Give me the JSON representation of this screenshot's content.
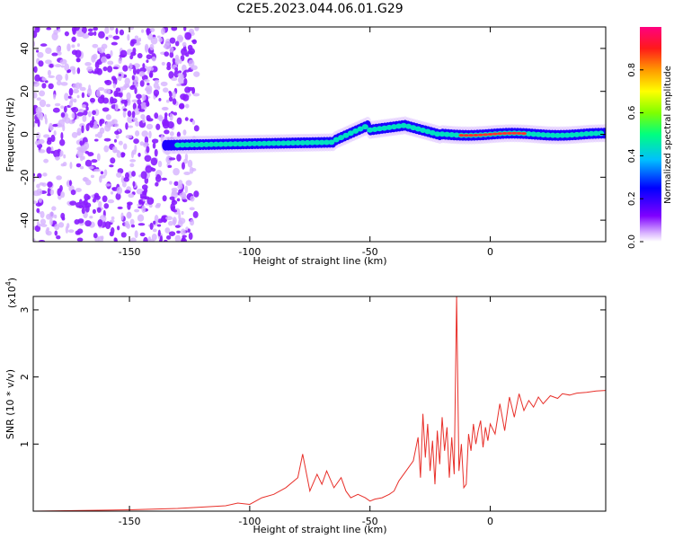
{
  "title": "C2E5.2023.044.06.01.G29",
  "spectrogram": {
    "xlabel": "Height of straight line (km)",
    "ylabel": "Frequency (Hz)",
    "xlim": [
      -190,
      48
    ],
    "ylim": [
      -50,
      50
    ],
    "xticks": [
      -150,
      -100,
      -50,
      0
    ],
    "yticks": [
      -40,
      -20,
      0,
      20,
      40
    ],
    "colorbar": {
      "label": "Normalized spectral amplitude",
      "range": [
        0,
        1
      ],
      "ticks": [
        "0.0",
        "0.2",
        "0.4",
        "0.6",
        "0.8"
      ],
      "tick_values": [
        0.0,
        0.2,
        0.4,
        0.6,
        0.8
      ],
      "colors": [
        "#ffffff",
        "#7f00ff",
        "#0000ff",
        "#00bfff",
        "#00ff7f",
        "#7fff00",
        "#ffff00",
        "#ff7f00",
        "#ff0000",
        "#ff007f"
      ]
    }
  },
  "chart_data": {
    "type": "line",
    "xlabel": "Height of straight line (km)",
    "ylabel": "SNR (10 * v/v)",
    "yscale_label": "(x10",
    "yscale_exp": "4",
    "yscale_close": ")",
    "xlim": [
      -190,
      48
    ],
    "ylim": [
      0,
      3.2
    ],
    "xticks": [
      -150,
      -100,
      -50,
      0
    ],
    "yticks": [
      1,
      2,
      3
    ],
    "color": "#e8302a",
    "x": [
      -190,
      -170,
      -150,
      -140,
      -130,
      -120,
      -110,
      -105,
      -100,
      -95,
      -90,
      -85,
      -80,
      -78,
      -75,
      -72,
      -70,
      -68,
      -65,
      -62,
      -60,
      -58,
      -55,
      -52,
      -50,
      -48,
      -45,
      -42,
      -40,
      -38,
      -35,
      -32,
      -30,
      -29,
      -28,
      -27,
      -26,
      -25,
      -24,
      -23,
      -22,
      -21,
      -20,
      -19,
      -18,
      -17,
      -16,
      -15,
      -14,
      -13,
      -12,
      -11,
      -10,
      -9,
      -8,
      -7,
      -6,
      -5,
      -4,
      -3,
      -2,
      -1,
      0,
      2,
      4,
      6,
      8,
      10,
      12,
      14,
      16,
      18,
      20,
      22,
      25,
      28,
      30,
      33,
      36,
      40,
      44,
      48
    ],
    "y": [
      0.0,
      0.01,
      0.02,
      0.03,
      0.04,
      0.06,
      0.08,
      0.12,
      0.1,
      0.2,
      0.25,
      0.35,
      0.5,
      0.85,
      0.3,
      0.55,
      0.4,
      0.6,
      0.35,
      0.5,
      0.3,
      0.2,
      0.25,
      0.2,
      0.15,
      0.18,
      0.2,
      0.25,
      0.3,
      0.45,
      0.6,
      0.75,
      1.1,
      0.5,
      1.45,
      0.8,
      1.3,
      0.6,
      1.05,
      0.4,
      1.2,
      0.7,
      1.4,
      0.9,
      1.25,
      0.5,
      1.1,
      0.55,
      3.2,
      0.6,
      1.0,
      0.35,
      0.4,
      1.15,
      0.9,
      1.3,
      1.0,
      1.2,
      1.35,
      0.95,
      1.25,
      1.05,
      1.3,
      1.15,
      1.6,
      1.2,
      1.7,
      1.4,
      1.75,
      1.5,
      1.65,
      1.55,
      1.7,
      1.6,
      1.72,
      1.68,
      1.75,
      1.73,
      1.76,
      1.77,
      1.79,
      1.8
    ]
  }
}
